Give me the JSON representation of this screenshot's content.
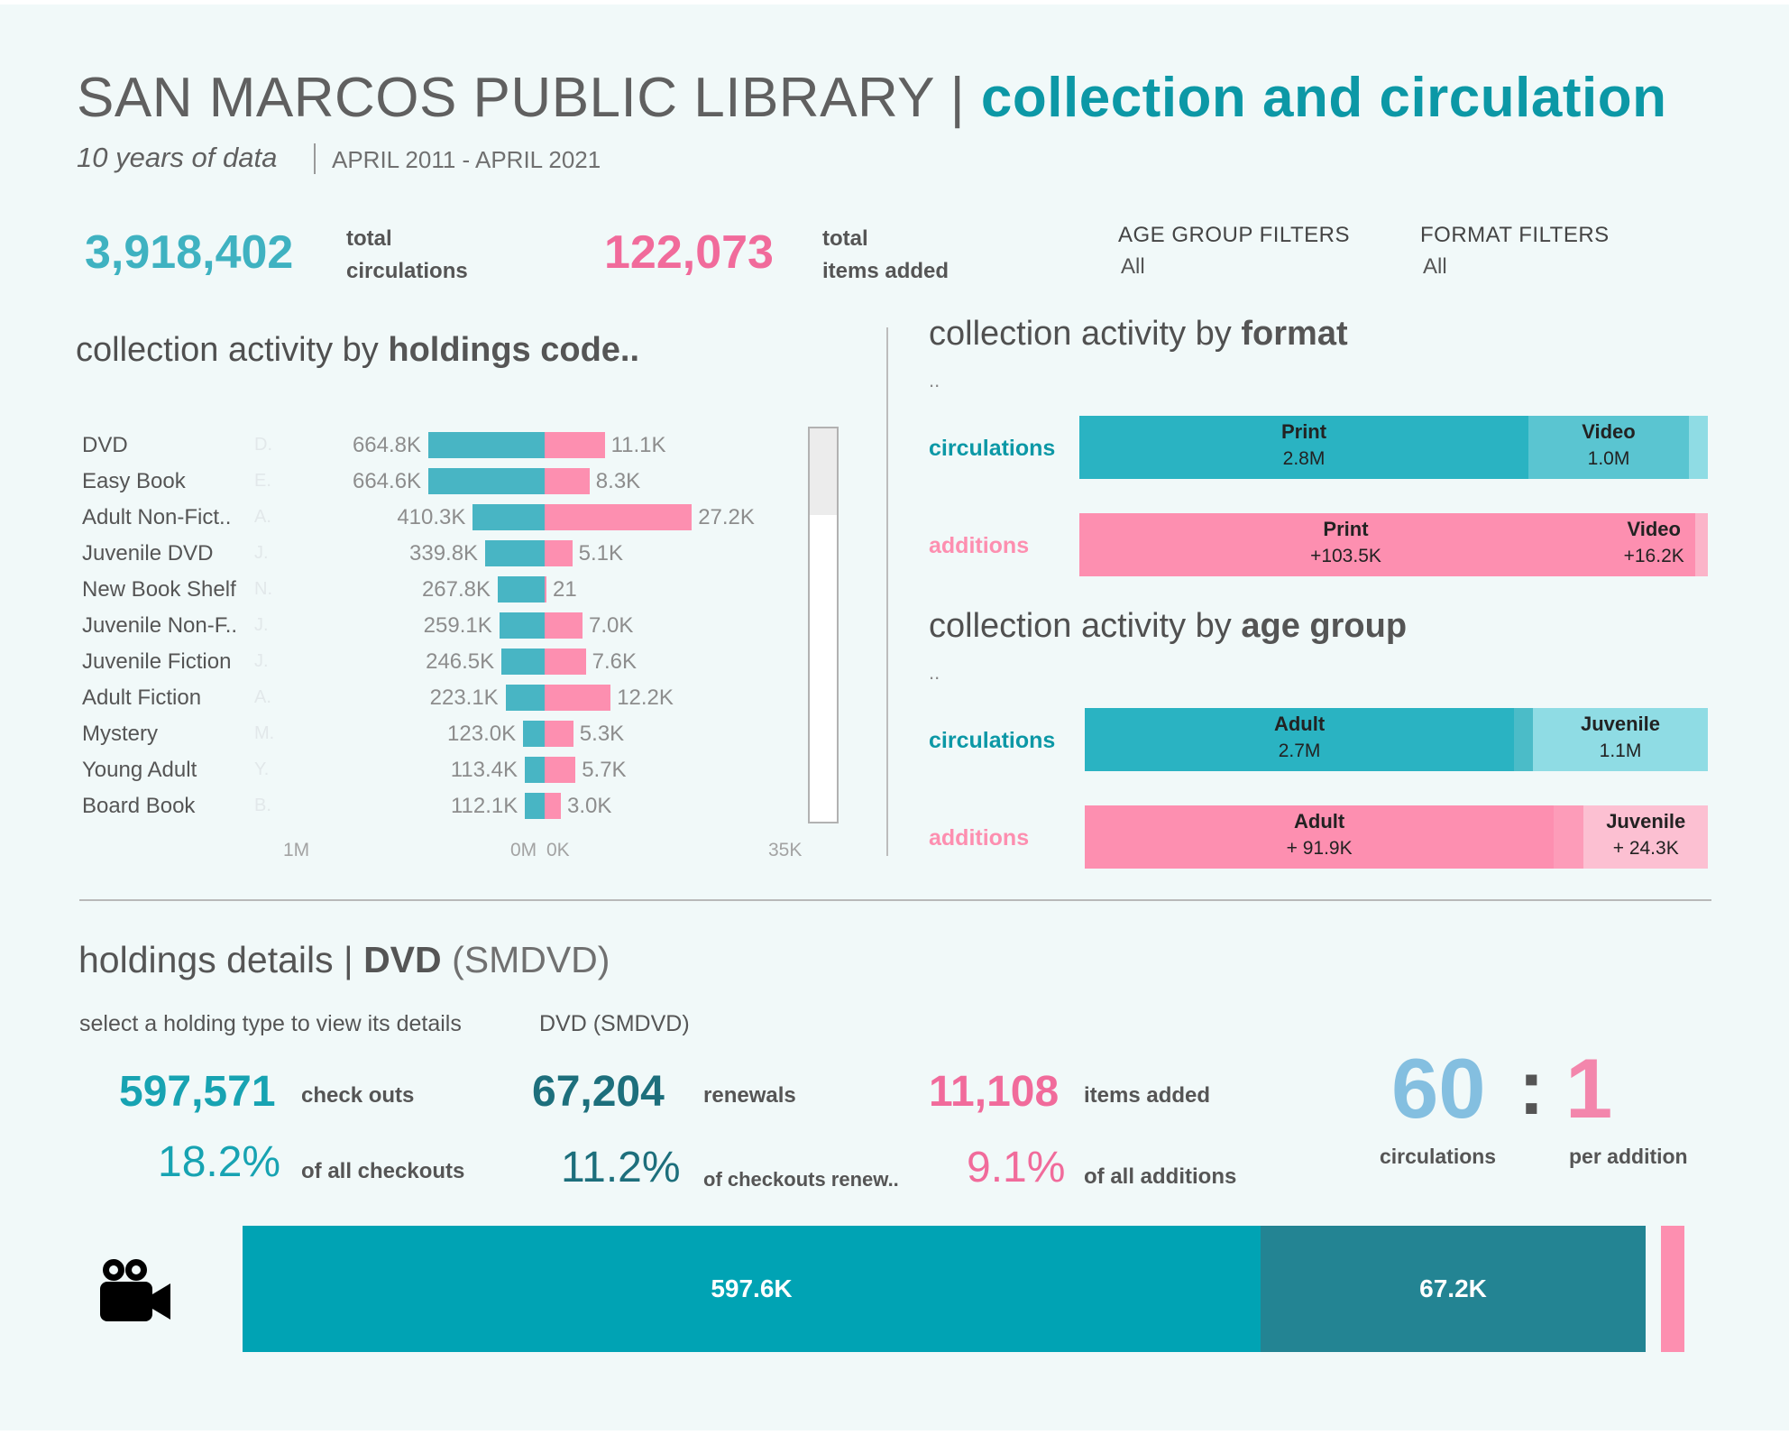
{
  "header": {
    "title_main": "SAN MARCOS PUBLIC LIBRARY",
    "title_sep": "|",
    "title_accent": "collection and circulation",
    "subtitle": "10 years of data",
    "date_range": "APRIL 2011 - APRIL 2021"
  },
  "kpis": {
    "circulations_value": "3,918,402",
    "circulations_label_1": "total",
    "circulations_label_2": "circulations",
    "added_value": "122,073",
    "added_label_1": "total",
    "added_label_2": "items added"
  },
  "filters": {
    "age_title": "AGE GROUP FILTERS",
    "age_value": "All",
    "format_title": "FORMAT FILTERS",
    "format_value": "All"
  },
  "sections": {
    "holdings_prefix": "collection activity by ",
    "holdings_bold": "holdings code..",
    "format_prefix": "collection activity by ",
    "format_bold": "format",
    "format_dots": "..",
    "age_prefix": "collection activity by ",
    "age_bold": "age group",
    "age_dots": "..",
    "circ_label": "circulations",
    "add_label": "additions"
  },
  "colors": {
    "teal_dark": "#0c98a6",
    "teal_bar": "#48b5c4",
    "pink": "#fd8fb0",
    "pink_text": "#f16b9b",
    "ratio_blue": "#84bfe0"
  },
  "chart_data": [
    {
      "type": "bar",
      "orientation": "horizontal",
      "diverging": true,
      "categories": [
        "DVD",
        "Easy Book",
        "Adult Non-Fict..",
        "Juvenile DVD",
        "New Book Shelf",
        "Juvenile Non-F..",
        "Juvenile Fiction",
        "Adult Fiction",
        "Mystery",
        "Young Adult",
        "Board Book"
      ],
      "codes": [
        "D.",
        "E.",
        "A.",
        "J.",
        "N.",
        "J.",
        "J.",
        "A.",
        "M.",
        "Y.",
        "B."
      ],
      "series": [
        {
          "values": [
            664800,
            664600,
            410300,
            339800,
            267800,
            259100,
            246500,
            223100,
            123000,
            113400,
            112100
          ],
          "labels": [
            "664.8K",
            "664.6K",
            "410.3K",
            "339.8K",
            "267.8K",
            "259.1K",
            "246.5K",
            "223.1K",
            "123.0K",
            "113.4K",
            "112.1K"
          ],
          "color": "#48b5c4"
        },
        {
          "values": [
            11100,
            8300,
            27200,
            5100,
            21,
            7000,
            7600,
            12200,
            5300,
            5700,
            3000
          ],
          "labels": [
            "11.1K",
            "8.3K",
            "27.2K",
            "5.1K",
            "21",
            "7.0K",
            "7.6K",
            "12.2K",
            "5.3K",
            "5.7K",
            "3.0K"
          ],
          "color": "#fd8fb0"
        }
      ],
      "left_axis": {
        "range": [
          0,
          1000000
        ],
        "ticks": [
          "1M",
          "0M"
        ]
      },
      "right_axis": {
        "range": [
          0,
          35000
        ],
        "ticks": [
          "0K",
          "35K"
        ]
      }
    },
    {
      "type": "bar",
      "orientation": "horizontal",
      "stacked": true,
      "title": "collection activity by format",
      "rows": [
        {
          "label": "circulations",
          "segments": [
            {
              "name": "Print",
              "value": 2800000,
              "label": "2.8M",
              "color": "#2ab3c2"
            },
            {
              "name": "Video",
              "value": 1000000,
              "label": "1.0M",
              "color": "#5ac5d1"
            },
            {
              "name": "",
              "value": 118402,
              "label": "",
              "color": "#8fdce4"
            }
          ]
        },
        {
          "label": "additions",
          "segments": [
            {
              "name": "Print",
              "value": 103500,
              "label": "+103.5K",
              "color": "#fd8fb0"
            },
            {
              "name": "Video",
              "value": 16200,
              "label": "+16.2K",
              "color": "#fd8fb0"
            },
            {
              "name": "",
              "value": 2373,
              "label": "",
              "color": "#fbb4c9"
            }
          ]
        }
      ]
    },
    {
      "type": "bar",
      "orientation": "horizontal",
      "stacked": true,
      "title": "collection activity by age group",
      "rows": [
        {
          "label": "circulations",
          "segments": [
            {
              "name": "Adult",
              "value": 2700000,
              "label": "2.7M",
              "color": "#2ab3c2"
            },
            {
              "name": "",
              "value": 118402,
              "label": "",
              "color": "#4bbcc8"
            },
            {
              "name": "Juvenile",
              "value": 1100000,
              "label": "1.1M",
              "color": "#8fdce4"
            }
          ]
        },
        {
          "label": "additions",
          "segments": [
            {
              "name": "Adult",
              "value": 91900,
              "label": "+ 91.9K",
              "color": "#fd8fb0"
            },
            {
              "name": "",
              "value": 5873,
              "label": "",
              "color": "#fd9cb9"
            },
            {
              "name": "Juvenile",
              "value": 24300,
              "label": "+ 24.3K",
              "color": "#fcc0d2"
            }
          ]
        }
      ]
    },
    {
      "type": "bar",
      "orientation": "horizontal",
      "stacked": true,
      "title": "holdings details | DVD (SMDVD)",
      "segments": [
        {
          "name": "check outs",
          "value": 597571,
          "label": "597.6K",
          "color": "#00a3b4"
        },
        {
          "name": "renewals",
          "value": 67204,
          "label": "67.2K",
          "color": "#238493"
        },
        {
          "name": "items added",
          "value": 11108,
          "label": "",
          "color": "#fd8fb0"
        }
      ]
    }
  ],
  "details": {
    "title_prefix": "holdings details | ",
    "title_bold": "DVD",
    "title_paren": "(SMDVD)",
    "select_text": "select a holding type to view its details",
    "selected_value": "DVD (SMDVD)",
    "checkouts_value": "597,571",
    "checkouts_label": "check outs",
    "checkouts_pct": "18.2%",
    "checkouts_pct_label": "of all checkouts",
    "renewals_value": "67,204",
    "renewals_label": "renewals",
    "renewals_pct": "11.2%",
    "renewals_pct_label": "of checkouts  renew..",
    "added_value": "11,108",
    "added_label": "items added",
    "added_pct": "9.1%",
    "added_pct_label": "of all additions",
    "ratio_left": "60",
    "ratio_colon": ":",
    "ratio_right": "1",
    "ratio_left_label": "circulations",
    "ratio_right_label": "per addition",
    "icon": "video-camera-icon"
  }
}
